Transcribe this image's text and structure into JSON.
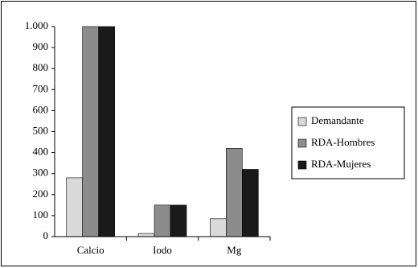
{
  "chart_data": {
    "type": "bar",
    "categories": [
      "Calcio",
      "Iodo",
      "Mg"
    ],
    "series": [
      {
        "name": "Demandante",
        "color": "#d9d9d9",
        "values": [
          280,
          15,
          85
        ]
      },
      {
        "name": "RDA-Hombres",
        "color": "#8c8c8c",
        "values": [
          1000,
          150,
          420
        ]
      },
      {
        "name": "RDA-Mujeres",
        "color": "#1a1a1a",
        "values": [
          1000,
          150,
          320
        ]
      }
    ],
    "ylim": [
      0,
      1000
    ],
    "yticks": [
      0,
      100,
      200,
      300,
      400,
      500,
      600,
      700,
      800,
      900,
      {
        "value": 1000,
        "label": "1.000"
      }
    ],
    "grid": false,
    "legend": "right"
  }
}
